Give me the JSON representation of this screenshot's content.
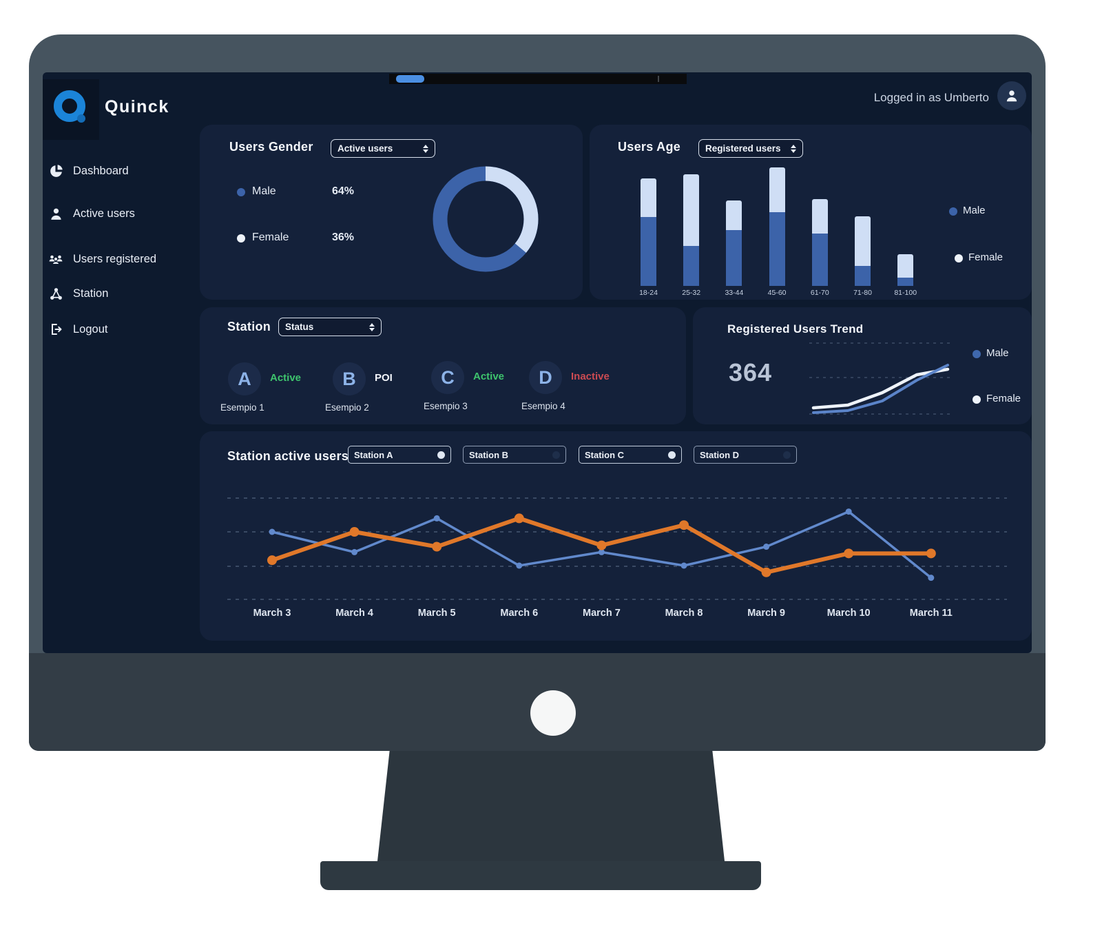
{
  "brand": "Quinck",
  "header": {
    "logged_in": "Logged in as Umberto"
  },
  "sidebar": {
    "items": [
      {
        "label": "Dashboard",
        "icon": "pie-chart-icon"
      },
      {
        "label": "Active users",
        "icon": "user-icon"
      },
      {
        "label": "Users registered",
        "icon": "users-group-icon"
      },
      {
        "label": "Station",
        "icon": "station-network-icon"
      },
      {
        "label": "Logout",
        "icon": "logout-icon"
      }
    ]
  },
  "cards": {
    "users_gender": {
      "title": "Users Gender",
      "filter": "Active users"
    },
    "users_age": {
      "title": "Users Age",
      "filter": "Registered users",
      "legend": [
        "Male",
        "Female"
      ]
    },
    "station": {
      "title": "Station",
      "filter": "Status",
      "items": [
        {
          "letter": "A",
          "status": "Active",
          "status_color": "#3ec46d",
          "name": "Esempio 1"
        },
        {
          "letter": "B",
          "status": "POI",
          "status_color": "#f2f5fa",
          "name": "Esempio 2"
        },
        {
          "letter": "C",
          "status": "Active",
          "status_color": "#3ec46d",
          "name": "Esempio 3"
        },
        {
          "letter": "D",
          "status": "Inactive",
          "status_color": "#cc4b52",
          "name": "Esempio 4"
        }
      ]
    },
    "trend": {
      "title": "Registered Users Trend",
      "legend": [
        "Male",
        "Female"
      ]
    },
    "station_active": {
      "title": "Station active users",
      "chips": [
        {
          "label": "Station A",
          "enabled": true,
          "dot_color": "#dfe7f2"
        },
        {
          "label": "Station B",
          "enabled": false,
          "dot_color": "#1e2e4a"
        },
        {
          "label": "Station C",
          "enabled": true,
          "dot_color": "#dfe7f2"
        },
        {
          "label": "Station D",
          "enabled": false,
          "dot_color": "#1e2e4a"
        }
      ]
    }
  },
  "colors": {
    "male_blue": "#3c63a9",
    "female_light": "#cfdef5",
    "line_blue": "#6189cc",
    "line_orange": "#e0782a",
    "green": "#3ec46d",
    "red": "#cc4b52",
    "card_bg": "#14213a",
    "screen_bg": "#0d1a2e"
  },
  "chart_data": [
    {
      "type": "pie",
      "donut": true,
      "title": "Users Gender",
      "labels": [
        "Male",
        "Female"
      ],
      "values": [
        64,
        36
      ],
      "display_values": [
        "64%",
        "36%"
      ],
      "colors": [
        "#3c63a9",
        "#cfdef5"
      ],
      "start": "female segment starts at 12 o'clock, clockwise"
    },
    {
      "type": "bar",
      "stacked": true,
      "title": "Users Age",
      "categories": [
        "18-24",
        "25-32",
        "33-44",
        "45-60",
        "61-70",
        "71-80",
        "81-100"
      ],
      "series": [
        {
          "name": "Male",
          "color": "#3c63a9",
          "values": [
            58,
            34,
            47,
            62,
            44,
            17,
            7
          ]
        },
        {
          "name": "Female",
          "color": "#cfdef5",
          "values": [
            33,
            60,
            25,
            38,
            29,
            42,
            20
          ]
        }
      ],
      "ylim": [
        0,
        100
      ],
      "legend_position": "right",
      "grid": false
    },
    {
      "type": "line",
      "title": "Registered Users Trend",
      "total_label": "364",
      "x": [
        1,
        2,
        3,
        4,
        5
      ],
      "series": [
        {
          "name": "Male",
          "color": "#5b84c9",
          "values": [
            5,
            8,
            22,
            52,
            74
          ]
        },
        {
          "name": "Female",
          "color": "#eef3fa",
          "values": [
            12,
            16,
            34,
            60,
            68
          ]
        }
      ],
      "ylim": [
        0,
        100
      ],
      "grid": "dashed",
      "legend_position": "right"
    },
    {
      "type": "line",
      "title": "Station active users",
      "categories": [
        "March 3",
        "March 4",
        "March 5",
        "March 6",
        "March 7",
        "March 8",
        "March 9",
        "March 10",
        "March 11"
      ],
      "series": [
        {
          "name": "Station A",
          "color": "#6189cc",
          "values": [
            75,
            60,
            85,
            50,
            60,
            50,
            64,
            90,
            41
          ]
        },
        {
          "name": "Station C",
          "color": "#e0782a",
          "values": [
            54,
            75,
            64,
            85,
            65,
            80,
            45,
            59,
            59
          ]
        }
      ],
      "ylim": [
        25,
        100
      ],
      "grid": "dashed"
    }
  ]
}
